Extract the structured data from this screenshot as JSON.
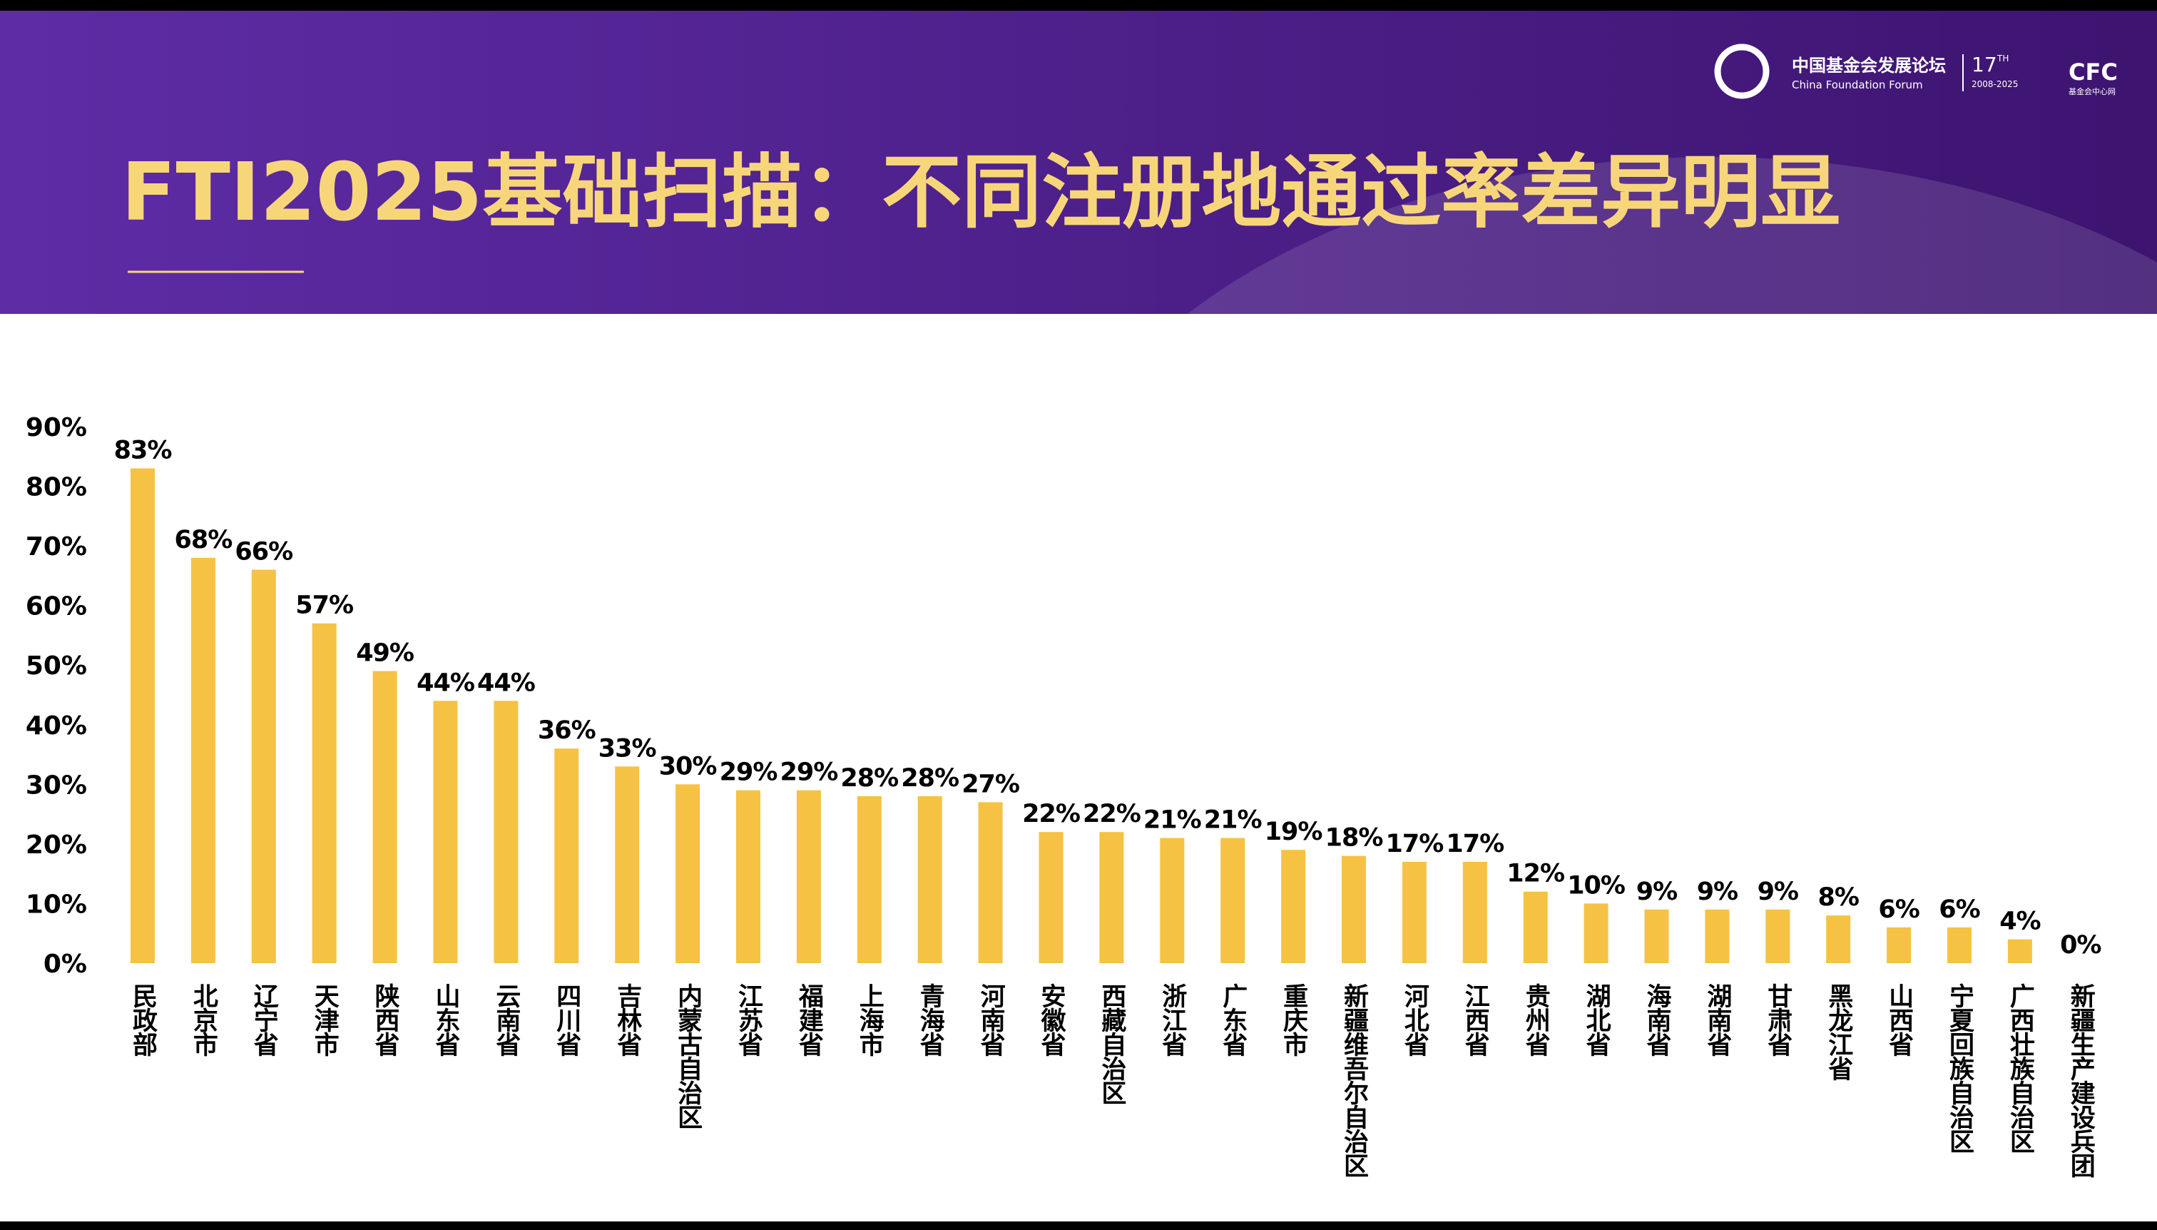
{
  "logo": {
    "name": "中国基金会发展论坛",
    "name_en": "China Foundation Forum",
    "edition": "17",
    "edition_sup": "TH",
    "years": "2008-2025",
    "partner": "CFC",
    "partner_name": "基金会中心网"
  },
  "chart_data": {
    "type": "bar",
    "title": "FTI2025基础扫描：不同注册地通过率差异明显",
    "categories": [
      "民政部",
      "北京市",
      "辽宁省",
      "天津市",
      "陕西省",
      "山东省",
      "云南省",
      "四川省",
      "吉林省",
      "内蒙古自治区",
      "江苏省",
      "福建省",
      "上海市",
      "青海省",
      "河南省",
      "安徽省",
      "西藏自治区",
      "浙江省",
      "广东省",
      "重庆市",
      "新疆维吾尔自治区",
      "河北省",
      "江西省",
      "贵州省",
      "湖北省",
      "海南省",
      "湖南省",
      "甘肃省",
      "黑龙江省",
      "山西省",
      "宁夏回族自治区",
      "广西壮族自治区",
      "新疆生产建设兵团"
    ],
    "values": [
      83,
      68,
      66,
      57,
      49,
      44,
      44,
      36,
      33,
      30,
      29,
      29,
      28,
      28,
      27,
      22,
      22,
      21,
      21,
      19,
      18,
      17,
      17,
      12,
      10,
      9,
      9,
      9,
      8,
      6,
      6,
      4,
      0
    ],
    "value_labels": [
      "83%",
      "68%",
      "66%",
      "57%",
      "49%",
      "44%",
      "44%",
      "36%",
      "33%",
      "30%",
      "29%",
      "29%",
      "28%",
      "28%",
      "27%",
      "22%",
      "22%",
      "21%",
      "21%",
      "19%",
      "18%",
      "17%",
      "17%",
      "12%",
      "10%",
      "9%",
      "9%",
      "9%",
      "8%",
      "6%",
      "6%",
      "4%",
      "0%"
    ],
    "color": "#f5c243",
    "ylim": [
      0,
      90
    ],
    "yticks": [
      {
        "value": 0,
        "label": "0%"
      },
      {
        "value": 10,
        "label": "10%"
      },
      {
        "value": 20,
        "label": "20%"
      },
      {
        "value": 30,
        "label": "30%"
      },
      {
        "value": 40,
        "label": "40%"
      },
      {
        "value": 50,
        "label": "50%"
      },
      {
        "value": 60,
        "label": "60%"
      },
      {
        "value": 70,
        "label": "70%"
      },
      {
        "value": 80,
        "label": "80%"
      },
      {
        "value": 90,
        "label": "90%"
      }
    ],
    "grid": false
  }
}
